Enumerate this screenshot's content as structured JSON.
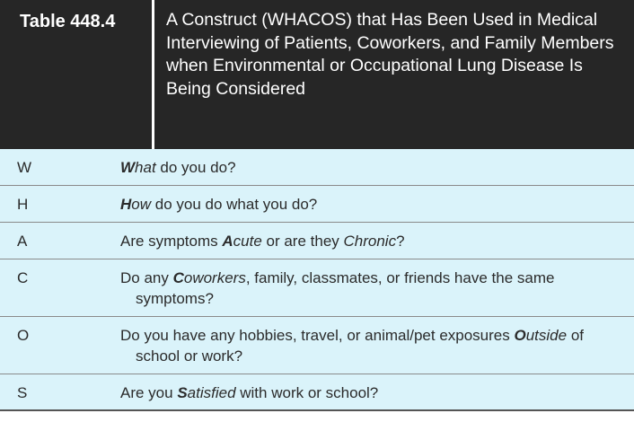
{
  "table": {
    "label": "Table 448.4",
    "title": "A Construct (WHACOS) that Has Been Used in Medical Interviewing of Patients, Coworkers, and Family Members when Environmental or Occupational Lung Disease Is Being Considered",
    "rows": [
      {
        "letter": "W",
        "parts": [
          {
            "text": "W",
            "style": "bi"
          },
          {
            "text": "hat",
            "style": "i"
          },
          {
            "text": " do you do?",
            "style": ""
          }
        ]
      },
      {
        "letter": "H",
        "parts": [
          {
            "text": "H",
            "style": "bi"
          },
          {
            "text": "ow",
            "style": "i"
          },
          {
            "text": " do you do what you do?",
            "style": ""
          }
        ]
      },
      {
        "letter": "A",
        "parts": [
          {
            "text": "Are symptoms ",
            "style": ""
          },
          {
            "text": "A",
            "style": "bi"
          },
          {
            "text": "cute",
            "style": "i"
          },
          {
            "text": " or are they ",
            "style": ""
          },
          {
            "text": "Chronic",
            "style": "i"
          },
          {
            "text": "?",
            "style": ""
          }
        ]
      },
      {
        "letter": "C",
        "parts": [
          {
            "text": "Do any ",
            "style": ""
          },
          {
            "text": "C",
            "style": "bi"
          },
          {
            "text": "oworkers",
            "style": "i"
          },
          {
            "text": ", family, classmates, or friends have the same symptoms?",
            "style": ""
          }
        ]
      },
      {
        "letter": "O",
        "parts": [
          {
            "text": "Do you have any hobbies, travel, or animal/pet exposures ",
            "style": ""
          },
          {
            "text": "O",
            "style": "bi"
          },
          {
            "text": "utside",
            "style": "i"
          },
          {
            "text": " of school or work?",
            "style": ""
          }
        ]
      },
      {
        "letter": "S",
        "parts": [
          {
            "text": "Are you ",
            "style": ""
          },
          {
            "text": "S",
            "style": "bi"
          },
          {
            "text": "atisfied",
            "style": "i"
          },
          {
            "text": " with work or school?",
            "style": ""
          }
        ]
      }
    ]
  },
  "colors": {
    "header_bg": "#262626",
    "row_bg": "#daf3fa",
    "rule": "#8a8a8a"
  }
}
